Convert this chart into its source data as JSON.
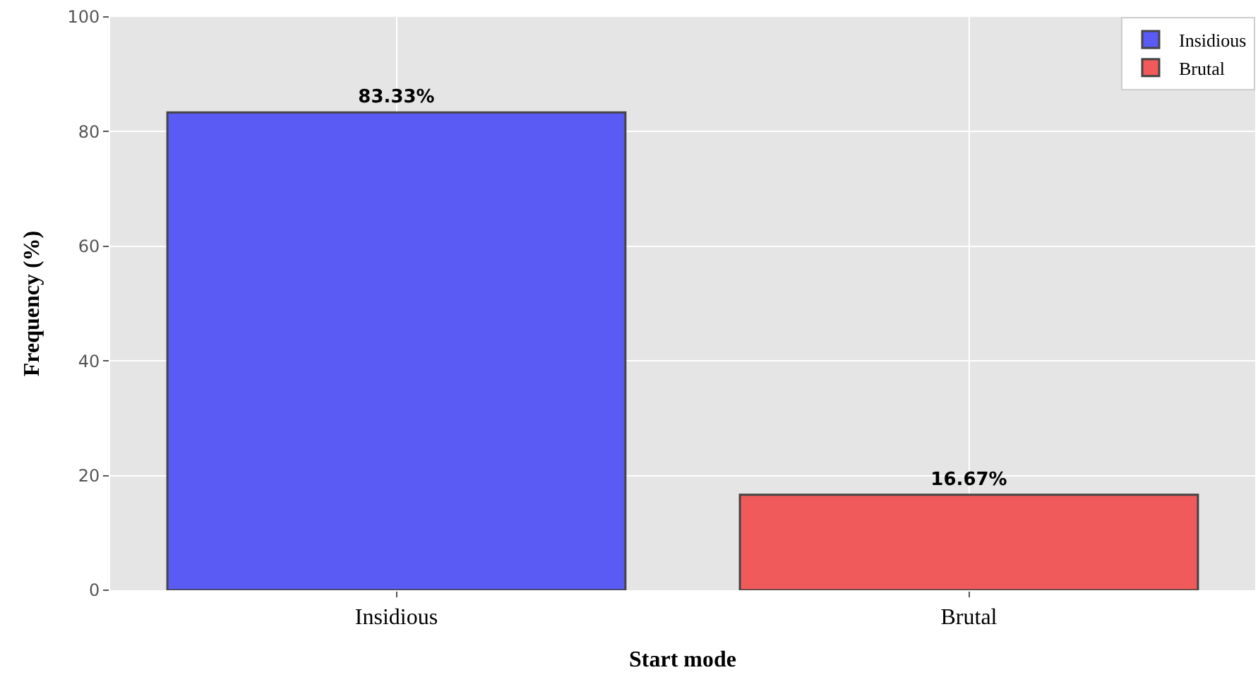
{
  "chart_data": {
    "type": "bar",
    "xlabel": "Start mode",
    "ylabel": "Frequency (%)",
    "categories": [
      "Insidious",
      "Brutal"
    ],
    "series": [
      {
        "name": "Insidious",
        "color": "#5a5af5",
        "values": [
          83.33,
          null
        ],
        "value_labels": [
          "83.33%",
          null
        ]
      },
      {
        "name": "Brutal",
        "color": "#f05a5a",
        "values": [
          null,
          16.67
        ],
        "value_labels": [
          null,
          "16.67%"
        ]
      }
    ],
    "ylim": [
      0,
      100
    ],
    "yticks": [
      0,
      20,
      40,
      60,
      80,
      100
    ],
    "grid": true,
    "legend": "top right"
  }
}
